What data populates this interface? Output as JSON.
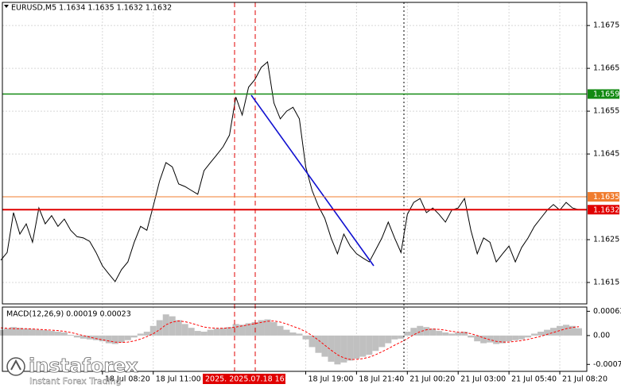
{
  "chart_data": [
    {
      "type": "line",
      "title": "EURUSD,M5  1.1634 1.1635 1.1632 1.1632",
      "categories": [
        null,
        null,
        null,
        null,
        null,
        null,
        null,
        null,
        null,
        null,
        null,
        null,
        null,
        null,
        null,
        null,
        "18 Jul 08:20",
        null,
        null,
        null,
        null,
        null,
        null,
        null,
        "18 Jul 11:00",
        null,
        null,
        null,
        null,
        null,
        null,
        null,
        null,
        null,
        null,
        null,
        null,
        null,
        null,
        null,
        null,
        null,
        null,
        null,
        null,
        null,
        null,
        null,
        "18 Jul 19:00",
        null,
        null,
        null,
        null,
        null,
        null,
        null,
        "18 Jul 21:40",
        null,
        null,
        null,
        null,
        null,
        null,
        null,
        "21 Jul 00:20",
        null,
        null,
        null,
        null,
        null,
        null,
        null,
        "21 Jul 03:00",
        null,
        null,
        null,
        null,
        null,
        null,
        null,
        "21 Jul 05:40",
        null,
        null,
        null,
        null,
        null,
        null,
        null,
        "21 Jul 08:20",
        null,
        null,
        null
      ],
      "series": [
        {
          "color": "#000000",
          "values": [
            1.16202,
            1.1622,
            1.16313,
            1.16263,
            1.16287,
            1.16244,
            1.16324,
            1.16287,
            1.16306,
            1.16281,
            1.16298,
            1.16272,
            1.16257,
            1.16254,
            1.16246,
            1.1622,
            1.16189,
            1.1617,
            1.16152,
            1.1618,
            1.16198,
            1.16244,
            1.16281,
            1.16272,
            1.16328,
            1.16387,
            1.1643,
            1.1642,
            1.1638,
            1.16374,
            1.16365,
            1.16356,
            1.16411,
            1.1643,
            1.16448,
            1.16467,
            1.16494,
            1.16583,
            1.16541,
            1.16606,
            1.16624,
            1.16652,
            1.16665,
            1.16569,
            1.16532,
            1.1655,
            1.16559,
            1.16532,
            1.1642,
            1.16365,
            1.16328,
            1.163,
            1.16254,
            1.16217,
            1.16263,
            1.16235,
            1.16217,
            1.16207,
            1.16198,
            1.16226,
            1.16254,
            1.16291,
            1.16254,
            1.1622,
            1.16309,
            1.16337,
            1.16346,
            1.16313,
            1.16324,
            1.16309,
            1.16291,
            1.16319,
            1.16324,
            1.16346,
            1.16272,
            1.16217,
            1.16254,
            1.16244,
            1.16198,
            1.16217,
            1.16235,
            1.16198,
            1.16232,
            1.16254,
            1.16281,
            1.163,
            1.16319,
            1.16332,
            1.16319,
            1.16337,
            1.16324,
            1.1632
          ]
        }
      ],
      "ylim": [
        1.161,
        1.16804
      ],
      "yticks": [
        1.1675,
        1.1665,
        1.1655,
        1.1645,
        1.1625,
        1.1615
      ],
      "grid": true,
      "levels": [
        {
          "value": 1.1659,
          "color": "#138a13"
        },
        {
          "value": 1.1635,
          "color": "#f07c2e"
        },
        {
          "value": 1.1632,
          "color": "#e00000"
        }
      ],
      "crosshair": {
        "label": "2025. 2025.07.18 16:15",
        "color": "#e00000"
      }
    },
    {
      "type": "macd",
      "title": "MACD(12,26,9) 0.00019 0.00023",
      "series": [
        {
          "color": "#c0c0c0",
          "values": [
            0.00015,
            0.00018,
            0.00022,
            0.0002,
            0.00018,
            0.00017,
            0.00015,
            0.00014,
            0.00012,
            0.0001,
            8e-05,
            2e-05,
            -5e-05,
            -8e-05,
            -0.0001,
            -0.00012,
            -0.00015,
            -0.0002,
            -0.00022,
            -0.00018,
            -0.00012,
            -5e-05,
            5e-05,
            0.0001,
            0.00025,
            0.0004,
            0.00055,
            0.0005,
            0.0004,
            0.0003,
            0.0002,
            0.00012,
            0.0001,
            0.00015,
            0.00018,
            0.0002,
            0.00022,
            0.0003,
            0.00028,
            0.00032,
            0.00035,
            0.0004,
            0.00042,
            0.00035,
            0.00025,
            0.00015,
            8e-05,
            5e-05,
            -0.0001,
            -0.0003,
            -0.00045,
            -0.00055,
            -0.00068,
            -0.00075,
            -0.0007,
            -0.00065,
            -0.0006,
            -0.00055,
            -0.0005,
            -0.0004,
            -0.0003,
            -0.0002,
            -0.0001,
            -8e-05,
            0.0001,
            0.0002,
            0.00025,
            0.00022,
            0.00018,
            0.00012,
            8e-05,
            5e-05,
            8e-05,
            0.0001,
            -5e-05,
            -0.00015,
            -0.0002,
            -0.00018,
            -0.00022,
            -0.0002,
            -0.00015,
            -0.00012,
            -0.0001,
            -5e-05,
            5e-05,
            0.0001,
            0.00015,
            0.0002,
            0.00025,
            0.00028,
            0.00025,
            0.00019
          ]
        },
        {
          "color": "#ff0000",
          "values": [
            0.0002,
            0.00019,
            0.00018,
            0.00018,
            0.00018,
            0.00017,
            0.00016,
            0.00015,
            0.00014,
            0.00013,
            0.00011,
            8e-05,
            4e-05,
            0,
            -4e-05,
            -8e-05,
            -0.00011,
            -0.00014,
            -0.00017,
            -0.00018,
            -0.00017,
            -0.00014,
            -9e-05,
            -3e-05,
            5e-05,
            0.00015,
            0.00028,
            0.00035,
            0.00038,
            0.00036,
            0.00032,
            0.00027,
            0.00022,
            0.0002,
            0.00019,
            0.00019,
            0.0002,
            0.00022,
            0.00025,
            0.00028,
            0.00031,
            0.00034,
            0.00037,
            0.00038,
            0.00035,
            0.0003,
            0.00024,
            0.00018,
            0.0001,
            0,
            -0.00012,
            -0.00025,
            -0.00038,
            -0.0005,
            -0.00058,
            -0.00062,
            -0.00062,
            -0.0006,
            -0.00056,
            -0.0005,
            -0.00042,
            -0.00034,
            -0.00025,
            -0.00017,
            -8e-05,
            2e-05,
            0.0001,
            0.00015,
            0.00017,
            0.00016,
            0.00014,
            0.00011,
            9e-05,
            8e-05,
            5e-05,
            0,
            -6e-05,
            -0.00011,
            -0.00015,
            -0.00017,
            -0.00017,
            -0.00015,
            -0.00013,
            -0.0001,
            -6e-05,
            -2e-05,
            3e-05,
            8e-05,
            0.00013,
            0.00018,
            0.00021,
            0.00023
          ]
        }
      ],
      "ylim": [
        -0.00093,
        0.00074
      ],
      "yticks": [
        0.00063,
        {
          "value": 0,
          "label": "0.00"
        },
        -0.00075
      ]
    }
  ],
  "watermark": {
    "name": "instaforex",
    "tagline": "Instant Forex Trading"
  }
}
